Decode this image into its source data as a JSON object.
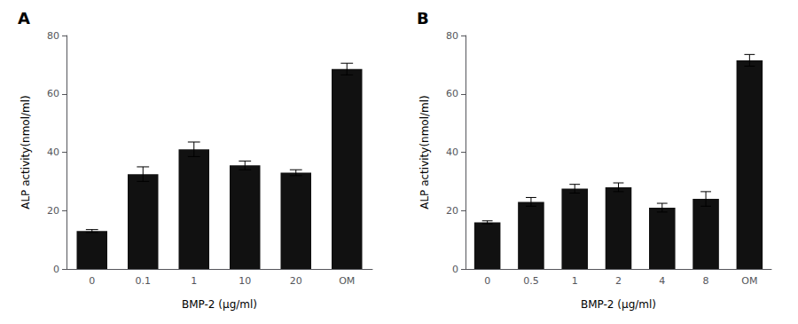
{
  "chart_data": [
    {
      "type": "bar",
      "title": "A",
      "categories": [
        "0",
        "0.1",
        "1",
        "10",
        "20",
        "OM"
      ],
      "values": [
        13.0,
        32.5,
        41.0,
        35.5,
        33.0,
        68.5
      ],
      "errors": [
        0.5,
        2.5,
        2.5,
        1.5,
        1.0,
        2.0
      ],
      "xlabel": "BMP-2 (μg/ml)",
      "ylabel": "ALP activity(nmol/ml)",
      "color": "#111111",
      "ylim": [
        0,
        80
      ],
      "yticks": [
        0,
        20,
        40,
        60,
        80
      ],
      "grid": false
    },
    {
      "type": "bar",
      "title": "B",
      "categories": [
        "0",
        "0.5",
        "1",
        "2",
        "4",
        "8",
        "OM"
      ],
      "values": [
        16.0,
        23.0,
        27.5,
        28.0,
        21.0,
        24.0,
        71.5
      ],
      "errors": [
        0.5,
        1.5,
        1.5,
        1.5,
        1.5,
        2.5,
        2.0
      ],
      "xlabel": "BMP-2 (μg/ml)",
      "ylabel": "ALP activity(nmol/ml)",
      "color": "#111111",
      "ylim": [
        0,
        80
      ],
      "yticks": [
        0,
        20,
        40,
        60,
        80
      ],
      "grid": false
    }
  ]
}
